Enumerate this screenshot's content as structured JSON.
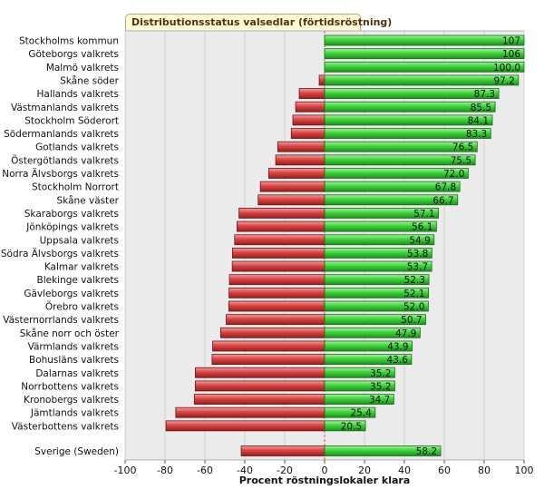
{
  "chart_data": {
    "type": "bar",
    "orientation": "horizontal",
    "title": "Distributionsstatus valsedlar (förtidsröstning)",
    "xlabel": "Procent röstningslokaler klara",
    "xlim": [
      -100,
      100
    ],
    "xticks": [
      "-100",
      "-80",
      "-60",
      "-40",
      "-20",
      "0",
      "20",
      "40",
      "60",
      "80",
      "100"
    ],
    "grid": true,
    "colors": {
      "positive": "#33cc33",
      "negative": "#cc3333",
      "plot_bg": "#ebebeb",
      "zero_line": "#e05050"
    },
    "categories": [
      "Stockholms kommun",
      "Göteborgs valkrets",
      "Malmö valkrets",
      "Skåne söder",
      "Hallands valkrets",
      "Västmanlands valkrets",
      "Stockholm Söderort",
      "Södermanlands valkrets",
      "Gotlands valkrets",
      "Östergötlands valkrets",
      "Norra Älvsborgs valkrets",
      "Stockholm Norrort",
      "Skåne väster",
      "Skaraborgs valkrets",
      "Jönköpings valkrets",
      "Uppsala valkrets",
      "Södra Älvsborgs valkrets",
      "Kalmar valkrets",
      "Blekinge valkrets",
      "Gävleborgs valkrets",
      "Örebro valkrets",
      "Västernorrlands valkrets",
      "Skåne norr och öster",
      "Värmlands valkrets",
      "Bohusläns valkrets",
      "Dalarnas valkrets",
      "Norrbottens valkrets",
      "Kronobergs valkrets",
      "Jämtlands valkrets",
      "Västerbottens valkrets",
      "Sverige (Sweden)"
    ],
    "positive_values": [
      107,
      106,
      100.0,
      97.2,
      87.3,
      85.5,
      84.1,
      83.3,
      76.5,
      75.5,
      72.0,
      67.8,
      66.7,
      57.1,
      56.1,
      54.9,
      53.8,
      53.7,
      52.3,
      52.1,
      52.0,
      50.7,
      47.9,
      43.9,
      43.6,
      35.2,
      35.2,
      34.7,
      25.4,
      20.5,
      58.2
    ],
    "value_labels": [
      "107",
      "106",
      "100.0",
      "97.2",
      "87.3",
      "85.5",
      "84.1",
      "83.3",
      "76.5",
      "75.5",
      "72.0",
      "67.8",
      "66.7",
      "57.1",
      "56.1",
      "54.9",
      "53.8",
      "53.7",
      "52.3",
      "52.1",
      "52.0",
      "50.7",
      "47.9",
      "43.9",
      "43.6",
      "35.2",
      "35.2",
      "34.7",
      "25.4",
      "20.5",
      "58.2"
    ],
    "negative_values": [
      0,
      0,
      0,
      -2.7,
      -12.7,
      -14.5,
      -15.9,
      -16.7,
      -23.5,
      -24.5,
      -28.0,
      -32.2,
      -33.3,
      -42.9,
      -43.9,
      -45.1,
      -46.2,
      -46.3,
      -47.7,
      -47.9,
      -48.0,
      -49.3,
      -52.1,
      -56.1,
      -56.4,
      -64.8,
      -64.8,
      -65.3,
      -74.6,
      -79.5,
      -41.8
    ]
  }
}
